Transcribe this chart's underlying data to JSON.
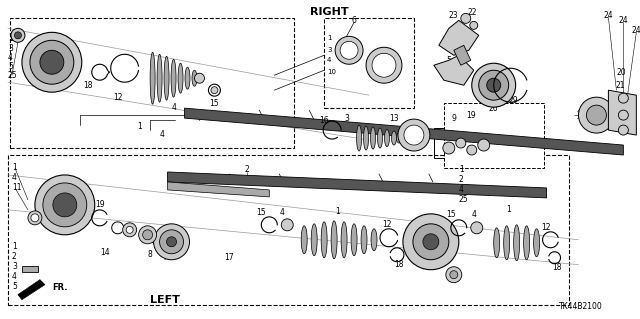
{
  "bg_color": "#ffffff",
  "diagram_code": "TK44B2100",
  "right_label": "RIGHT",
  "left_label": "LEFT",
  "fr_label": "FR.",
  "line_color": "#000000",
  "gray_light": "#cccccc",
  "gray_mid": "#888888",
  "gray_dark": "#444444",
  "gray_shaft": "#999999"
}
